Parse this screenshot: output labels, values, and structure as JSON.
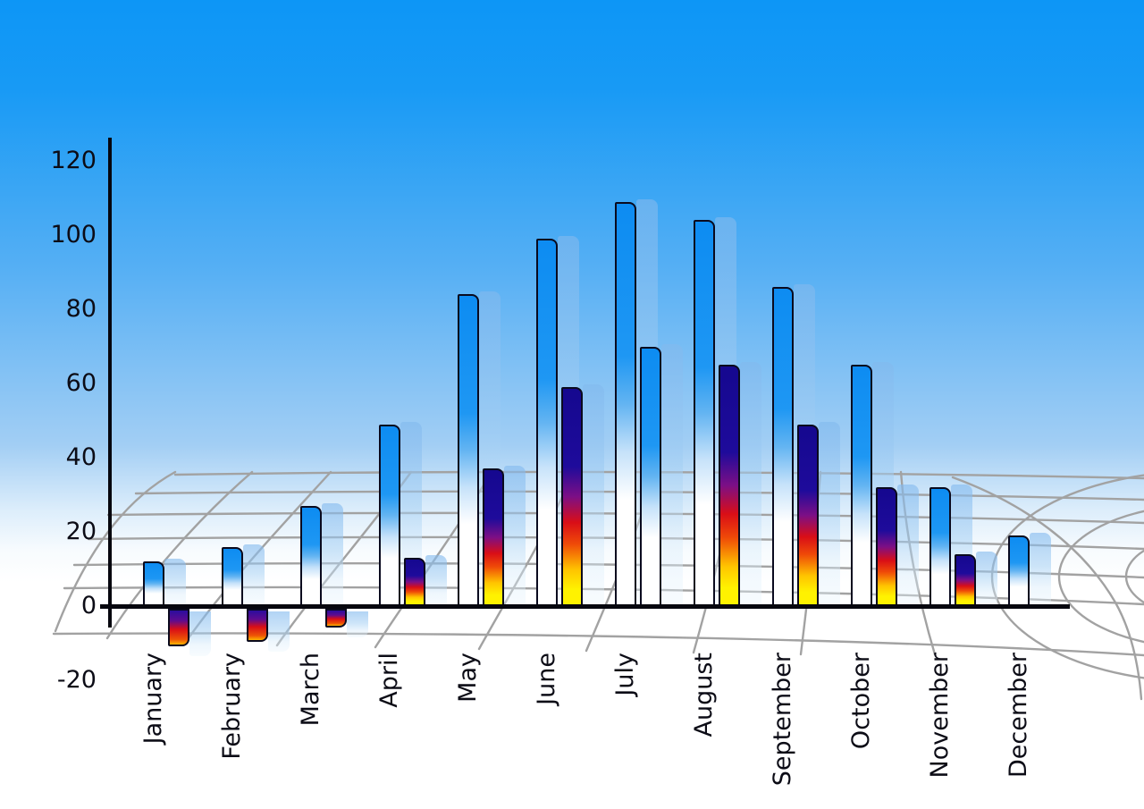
{
  "chart_data": {
    "type": "bar",
    "title": "",
    "categories": [
      "January",
      "February",
      "March",
      "April",
      "May",
      "June",
      "July",
      "August",
      "September",
      "October",
      "November",
      "December"
    ],
    "series": [
      {
        "name": "series-1-blue-column",
        "values": [
          12,
          16,
          27,
          49,
          84,
          99,
          109,
          104,
          86,
          65,
          32,
          19
        ]
      },
      {
        "name": "series-2-heat-column",
        "values": [
          -10,
          -9,
          -5,
          13,
          37,
          59,
          70,
          65,
          49,
          32,
          14,
          null
        ],
        "bar_styles": [
          "heat",
          "heat",
          "heat",
          "heat",
          "heat",
          "heat",
          "blue",
          "heat",
          "heat",
          "heat",
          "heat",
          null
        ]
      }
    ],
    "y_axis": {
      "tick_labels": [
        "120",
        "100",
        "80",
        "60",
        "40",
        "20",
        "0",
        "-20"
      ],
      "tick_values": [
        120,
        100,
        80,
        60,
        40,
        20,
        0,
        -20
      ],
      "range": [
        -20,
        130
      ],
      "gridlines": false
    },
    "x_axis": {
      "label_rotation_deg": -90
    },
    "legend": "none",
    "background": "sky-gradient-over-white-perspective-floor",
    "floor_grid": "gray curved perspective mesh"
  },
  "colors": {
    "sky_top": "#0D96F6",
    "bar_blue_top": "#0D8CF2",
    "heat_navy": "#1E0B9B",
    "heat_red": "#D90E17",
    "heat_yellow": "#FFF200",
    "shadow_blue": "#82B9EE",
    "grid_gray": "#A2A2A2",
    "axis_black": "#06060E",
    "text": "#0C0C16"
  }
}
